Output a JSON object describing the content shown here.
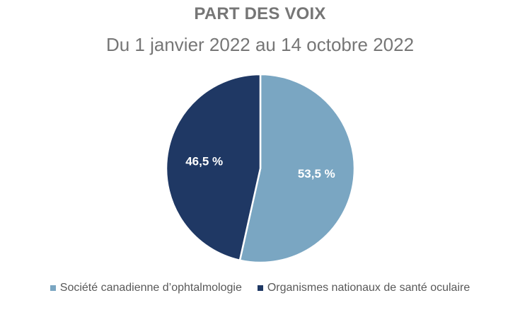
{
  "chart_data": {
    "type": "pie",
    "title": "PART DES VOIX",
    "subtitle": "Du 1 janvier 2022 au 14 octobre 2022",
    "slices": [
      {
        "label": "Société canadienne d’ophtalmologie",
        "value": 53.5,
        "value_label": "53,5 %",
        "color": "#7aa6c2"
      },
      {
        "label": "Organismes nationaux de santé oculaire",
        "value": 46.5,
        "value_label": "46,5 %",
        "color": "#1f3864"
      }
    ],
    "legend_position": "bottom"
  }
}
